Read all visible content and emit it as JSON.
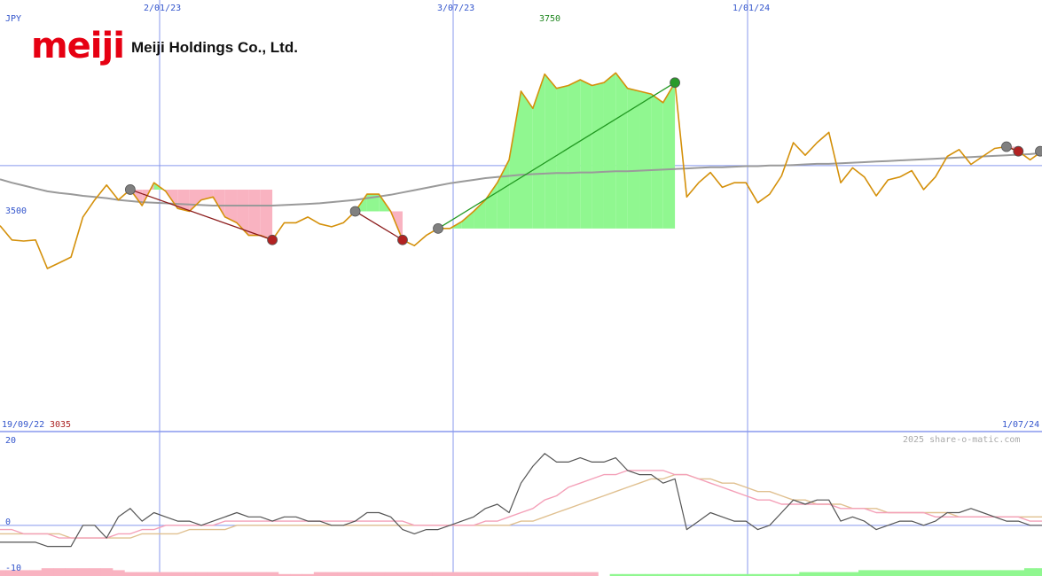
{
  "company": {
    "logo": "meiji",
    "name": "Meiji Holdings Co., Ltd."
  },
  "watermark": "2025 share-o-matic.com",
  "colors": {
    "price": "#d4900a",
    "ma_long": "#9a9a9a",
    "gain_fill": "#90f790",
    "loss_fill": "#f9b3c1",
    "gain_line": "#229922",
    "loss_line": "#8b1a1a",
    "grid": "#8899ee",
    "osc_main": "#555555",
    "osc_fast": "#f4a0b8",
    "osc_slow": "#e0c090"
  },
  "chart_data": [
    {
      "type": "line",
      "currency": "JPY",
      "x_start_label": "19/09/22",
      "x_end_label": "1/07/24",
      "x_tick_labels": [
        "2/01/23",
        "3/07/23",
        "1/01/24"
      ],
      "y_ref_label": "3500",
      "y_min_label": "3035",
      "y_max_label": "3750",
      "ylim": [
        3035,
        3760
      ],
      "y_ref": 3500,
      "price": [
        3395,
        3370,
        3368,
        3370,
        3320,
        3330,
        3340,
        3410,
        3440,
        3466,
        3440,
        3458,
        3430,
        3470,
        3455,
        3425,
        3420,
        3440,
        3445,
        3410,
        3400,
        3378,
        3378,
        3370,
        3400,
        3400,
        3410,
        3398,
        3393,
        3400,
        3420,
        3450,
        3450,
        3420,
        3370,
        3360,
        3378,
        3390,
        3390,
        3402,
        3420,
        3440,
        3470,
        3510,
        3630,
        3600,
        3660,
        3635,
        3640,
        3650,
        3640,
        3645,
        3662,
        3635,
        3630,
        3625,
        3610,
        3645,
        3445,
        3470,
        3488,
        3462,
        3470,
        3470,
        3435,
        3450,
        3482,
        3540,
        3518,
        3540,
        3558,
        3470,
        3496,
        3480,
        3447,
        3475,
        3480,
        3491,
        3458,
        3480,
        3516,
        3528,
        3502,
        3516,
        3530,
        3533,
        3525,
        3510,
        3525
      ],
      "ma_long": [
        3476,
        3470,
        3465,
        3460,
        3455,
        3452,
        3450,
        3447,
        3445,
        3443,
        3440,
        3438,
        3436,
        3435,
        3434,
        3433,
        3432,
        3431,
        3430,
        3430,
        3430,
        3430,
        3430,
        3430,
        3431,
        3432,
        3433,
        3434,
        3436,
        3438,
        3440,
        3443,
        3446,
        3449,
        3453,
        3457,
        3461,
        3465,
        3469,
        3472,
        3475,
        3478,
        3480,
        3482,
        3484,
        3485,
        3486,
        3487,
        3487,
        3488,
        3488,
        3489,
        3490,
        3490,
        3491,
        3492,
        3493,
        3494,
        3495,
        3496,
        3497,
        3497,
        3498,
        3499,
        3499,
        3500,
        3500,
        3501,
        3502,
        3503,
        3503,
        3504,
        3505,
        3506,
        3507,
        3508,
        3509,
        3510,
        3511,
        3512,
        3513,
        3514,
        3515,
        3516,
        3517,
        3518,
        3519,
        3520,
        3522
      ],
      "trades": [
        {
          "result": "loss",
          "entry_index": 11,
          "exit_index": 23
        },
        {
          "result": "loss",
          "entry_index": 30,
          "exit_index": 34
        },
        {
          "result": "gain",
          "entry_index": 37,
          "exit_index": 57
        },
        {
          "result": "loss",
          "entry_index": 85,
          "exit_index": 86
        }
      ]
    },
    {
      "type": "line",
      "y_tick_labels": [
        "20",
        "0",
        "-10"
      ],
      "ylim": [
        -12,
        22
      ],
      "main": [
        -4,
        -4,
        -4,
        -4,
        -5,
        -5,
        -5,
        0,
        0,
        -3,
        2,
        4,
        1,
        3,
        2,
        1,
        1,
        0,
        1,
        2,
        3,
        2,
        2,
        1,
        2,
        2,
        1,
        1,
        0,
        0,
        1,
        3,
        3,
        2,
        -1,
        -2,
        -1,
        -1,
        0,
        1,
        2,
        4,
        5,
        3,
        10,
        14,
        17,
        15,
        15,
        16,
        15,
        15,
        16,
        13,
        12,
        12,
        10,
        11,
        -1,
        1,
        3,
        2,
        1,
        1,
        -1,
        0,
        3,
        6,
        5,
        6,
        6,
        1,
        2,
        1,
        -1,
        0,
        1,
        1,
        0,
        1,
        3,
        3,
        4,
        3,
        2,
        1,
        1,
        0,
        0
      ],
      "fast": [
        -1,
        -1,
        -2,
        -2,
        -2,
        -3,
        -3,
        -3,
        -3,
        -3,
        -2,
        -2,
        -1,
        -1,
        0,
        0,
        0,
        0,
        0,
        1,
        1,
        1,
        1,
        1,
        1,
        1,
        1,
        1,
        1,
        1,
        1,
        1,
        1,
        1,
        1,
        0,
        0,
        0,
        0,
        0,
        0,
        1,
        1,
        2,
        3,
        4,
        6,
        7,
        9,
        10,
        11,
        12,
        12,
        13,
        13,
        13,
        13,
        12,
        12,
        11,
        10,
        9,
        8,
        7,
        6,
        6,
        5,
        5,
        5,
        5,
        5,
        4,
        4,
        4,
        3,
        3,
        3,
        3,
        3,
        2,
        2,
        2,
        2,
        2,
        2,
        2,
        2,
        1,
        1
      ],
      "slow": [
        -2,
        -2,
        -2,
        -2,
        -2,
        -2,
        -3,
        -3,
        -3,
        -3,
        -3,
        -3,
        -2,
        -2,
        -2,
        -2,
        -1,
        -1,
        -1,
        -1,
        0,
        0,
        0,
        0,
        0,
        0,
        0,
        0,
        0,
        0,
        0,
        0,
        0,
        0,
        0,
        0,
        0,
        0,
        0,
        0,
        0,
        0,
        0,
        0,
        1,
        1,
        2,
        3,
        4,
        5,
        6,
        7,
        8,
        9,
        10,
        11,
        11,
        12,
        12,
        11,
        11,
        10,
        10,
        9,
        8,
        8,
        7,
        6,
        6,
        5,
        5,
        5,
        4,
        4,
        4,
        3,
        3,
        3,
        3,
        3,
        3,
        2,
        2,
        2,
        2,
        2,
        2,
        2,
        2
      ],
      "histogram": [
        -3,
        -3,
        -3,
        -3,
        -4,
        -4,
        -4,
        -4,
        -4,
        -4,
        -3,
        -2,
        -2,
        -2,
        -2,
        -2,
        -2,
        -2,
        -2,
        -2,
        -2,
        -2,
        -2,
        -2,
        -1,
        -1,
        -1,
        -2,
        -2,
        -2,
        -2,
        -2,
        -2,
        -2,
        -2,
        -2,
        -2,
        -2,
        -2,
        -2,
        -2,
        -2,
        -2,
        -2,
        -2,
        -2,
        -2,
        -2,
        -2,
        -2,
        -2,
        0,
        1,
        1,
        1,
        1,
        1,
        1,
        1,
        1,
        1,
        1,
        1,
        1,
        1,
        1,
        1,
        1,
        2,
        2,
        2,
        2,
        2,
        3,
        3,
        3,
        3,
        3,
        3,
        3,
        3,
        3,
        3,
        3,
        3,
        3,
        3,
        4,
        4
      ]
    }
  ]
}
